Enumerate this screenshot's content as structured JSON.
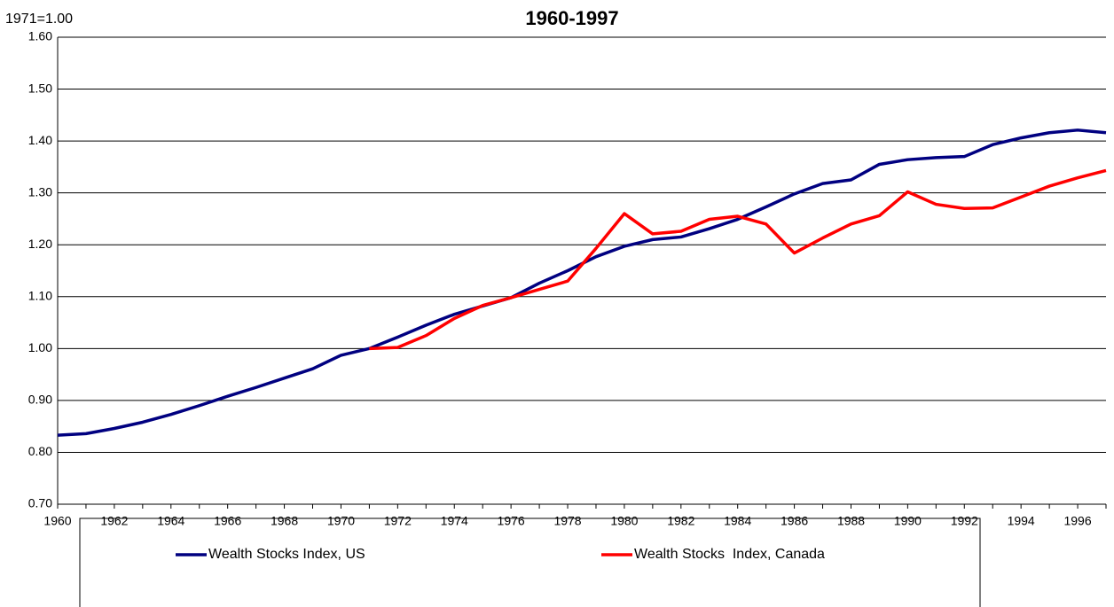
{
  "chart_data": {
    "type": "line",
    "title": "1960-1997",
    "y_label": "1971=1.00",
    "x": [
      1960,
      1961,
      1962,
      1963,
      1964,
      1965,
      1966,
      1967,
      1968,
      1969,
      1970,
      1971,
      1972,
      1973,
      1974,
      1975,
      1976,
      1977,
      1978,
      1979,
      1980,
      1981,
      1982,
      1983,
      1984,
      1985,
      1986,
      1987,
      1988,
      1989,
      1990,
      1991,
      1992,
      1993,
      1994,
      1995,
      1996,
      1997
    ],
    "xlim": [
      1960,
      1997
    ],
    "xticks": [
      1960,
      1962,
      1964,
      1966,
      1968,
      1970,
      1972,
      1974,
      1976,
      1978,
      1980,
      1982,
      1984,
      1986,
      1988,
      1990,
      1992,
      1994,
      1996
    ],
    "ylim": [
      0.7,
      1.6
    ],
    "yticks": [
      {
        "value": 0.7,
        "label": "0.70"
      },
      {
        "value": 0.8,
        "label": "0.80"
      },
      {
        "value": 0.9,
        "label": "0.90"
      },
      {
        "value": 1.0,
        "label": "1.00"
      },
      {
        "value": 1.1,
        "label": "1.10"
      },
      {
        "value": 1.2,
        "label": "1.20"
      },
      {
        "value": 1.3,
        "label": "1.30"
      },
      {
        "value": 1.4,
        "label": "1.40"
      },
      {
        "value": 1.5,
        "label": "1.50"
      },
      {
        "value": 1.6,
        "label": "1.60"
      }
    ],
    "grid": true,
    "series": [
      {
        "name": "Wealth Stocks Index, US",
        "color": "#000080",
        "values": [
          0.833,
          0.836,
          0.846,
          0.858,
          0.873,
          0.89,
          0.908,
          0.925,
          0.943,
          0.961,
          0.987,
          1.0,
          1.022,
          1.045,
          1.066,
          1.082,
          1.098,
          1.126,
          1.15,
          1.177,
          1.197,
          1.21,
          1.215,
          1.231,
          1.249,
          1.273,
          1.298,
          1.318,
          1.325,
          1.355,
          1.364,
          1.368,
          1.37,
          1.393,
          1.406,
          1.416,
          1.421,
          1.416
        ]
      },
      {
        "name": "Wealth Stocks  Index, Canada",
        "color": "#ff0000",
        "values": [
          null,
          null,
          null,
          null,
          null,
          null,
          null,
          null,
          null,
          null,
          null,
          1.0,
          1.002,
          1.025,
          1.058,
          1.083,
          1.098,
          1.114,
          1.13,
          1.193,
          1.26,
          1.221,
          1.226,
          1.249,
          1.255,
          1.24,
          1.184,
          1.213,
          1.24,
          1.256,
          1.302,
          1.278,
          1.27,
          1.271,
          1.292,
          1.313,
          1.329,
          1.343
        ]
      }
    ]
  }
}
